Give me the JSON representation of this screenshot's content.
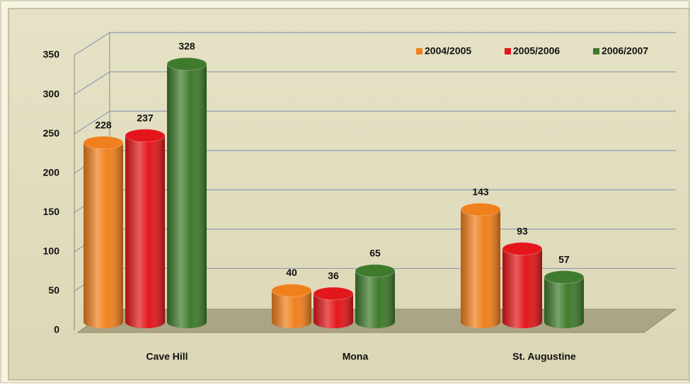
{
  "chart_data": {
    "type": "bar",
    "categories": [
      "Cave Hill",
      "Mona",
      "St. Augustine"
    ],
    "series": [
      {
        "name": "2004/2005",
        "color": "#f0801e",
        "values": [
          228,
          40,
          143
        ]
      },
      {
        "name": "2005/2006",
        "color": "#e3171b",
        "values": [
          237,
          36,
          93
        ]
      },
      {
        "name": "2006/2007",
        "color": "#3f7b2c",
        "values": [
          328,
          65,
          57
        ]
      }
    ],
    "ylim": [
      0,
      350
    ],
    "yticks": [
      0,
      50,
      100,
      150,
      200,
      250,
      300,
      350
    ],
    "grid": true,
    "legend": "top-right"
  }
}
